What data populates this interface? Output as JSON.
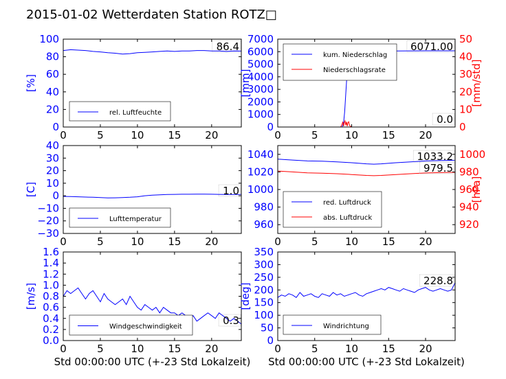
{
  "title": "2015-01-02 Wetterdaten Station ROTZ□",
  "colors": {
    "primary": "#0000ff",
    "secondary": "#ff0000"
  },
  "chart_data": [
    {
      "id": "humidity",
      "type": "line",
      "xlim": [
        0,
        24
      ],
      "ylim": [
        0,
        100
      ],
      "xticks": [
        "0",
        "5",
        "10",
        "15",
        "20"
      ],
      "yticks": [
        "0",
        "20",
        "40",
        "60",
        "80",
        "100"
      ],
      "ylabel": "[%]",
      "xlabel": "",
      "legend_placement": "lower-left",
      "last_value": "86.4",
      "series": [
        {
          "name": "rel. Luftfeuchte",
          "color": "#0000ff",
          "axis": "left",
          "x": [
            0,
            1,
            2,
            3,
            4,
            5,
            6,
            7,
            8,
            9,
            10,
            11,
            12,
            13,
            14,
            15,
            16,
            17,
            18,
            19,
            20,
            21,
            22,
            23,
            24
          ],
          "y": [
            87,
            88,
            87.5,
            87,
            86,
            85.5,
            84.5,
            84,
            83,
            83.5,
            84.5,
            85,
            85.5,
            86,
            86.5,
            86,
            86.5,
            86.5,
            87,
            87,
            86.5,
            86.5,
            86,
            86.5,
            86.4
          ]
        }
      ]
    },
    {
      "id": "precip",
      "type": "line",
      "xlim": [
        0,
        24
      ],
      "ylim": [
        0,
        7000
      ],
      "ylim_right": [
        0,
        50
      ],
      "xticks": [
        "0",
        "5",
        "10",
        "15",
        "20"
      ],
      "yticks": [
        "0",
        "1000",
        "2000",
        "3000",
        "4000",
        "5000",
        "6000",
        "7000"
      ],
      "yticks_right": [
        "0",
        "10",
        "20",
        "30",
        "40",
        "50"
      ],
      "ylabel": "[mm]",
      "ylabel_right": "[mm/std]",
      "xlabel": "",
      "legend_placement": "upper-left",
      "last_value": "6071.00",
      "last_value_right": "0.0",
      "series": [
        {
          "name": "kum. Niederschlag",
          "color": "#0000ff",
          "axis": "left",
          "x": [
            0,
            8.7,
            8.9,
            9.05,
            9.2,
            9.35,
            9.5,
            9.65,
            9.8,
            10,
            11,
            12,
            16,
            20,
            24
          ],
          "y": [
            0,
            0,
            300,
            1200,
            2600,
            4000,
            5000,
            5600,
            5850,
            5950,
            6010,
            6040,
            6060,
            6070,
            6071
          ]
        },
        {
          "name": "Niederschlagsrate",
          "color": "#ff0000",
          "axis": "right",
          "x": [
            0,
            8.5,
            8.7,
            8.8,
            8.9,
            9.0,
            9.1,
            9.2,
            9.3,
            9.4,
            9.5,
            9.6,
            9.7,
            9.8,
            10,
            24
          ],
          "y": [
            0,
            0,
            1.5,
            3,
            0.5,
            2.5,
            3.5,
            1,
            3,
            0.5,
            2.5,
            3,
            1,
            0.5,
            0,
            0
          ]
        }
      ]
    },
    {
      "id": "temperature",
      "type": "line",
      "xlim": [
        0,
        24
      ],
      "ylim": [
        -30,
        40
      ],
      "xticks": [
        "0",
        "5",
        "10",
        "15",
        "20"
      ],
      "yticks": [
        "−30",
        "−20",
        "−10",
        "0",
        "10",
        "20",
        "30",
        "40"
      ],
      "ylabel": "[C]",
      "xlabel": "",
      "legend_placement": "lower-left",
      "last_value": "1.0",
      "series": [
        {
          "name": "Lufttemperatur",
          "color": "#0000ff",
          "axis": "left",
          "x": [
            0,
            1,
            2,
            3,
            4,
            5,
            6,
            7,
            8,
            9,
            10,
            11,
            12,
            13,
            14,
            15,
            16,
            17,
            18,
            19,
            20,
            21,
            22,
            23,
            24
          ],
          "y": [
            -0.5,
            -0.6,
            -0.8,
            -1,
            -1.2,
            -1.4,
            -1.7,
            -1.6,
            -1.4,
            -1.2,
            -0.8,
            0,
            0.5,
            0.8,
            1,
            1.1,
            1.2,
            1.2,
            1.3,
            1.3,
            1.2,
            1.1,
            1.0,
            1.0,
            1.0
          ]
        }
      ]
    },
    {
      "id": "pressure",
      "type": "line",
      "xlim": [
        0,
        24
      ],
      "ylim": [
        950,
        1050
      ],
      "ylim_right": [
        910,
        1010
      ],
      "xticks": [
        "0",
        "5",
        "10",
        "15",
        "20"
      ],
      "yticks": [
        "960",
        "980",
        "1000",
        "1020",
        "1040"
      ],
      "yticks_right": [
        "920",
        "940",
        "960",
        "980",
        "1000"
      ],
      "ylabel": "",
      "ylabel_right": "[hPa]",
      "xlabel": "",
      "legend_placement": "lower-left",
      "last_value": "1033.2",
      "last_value_right": "979.5",
      "series": [
        {
          "name": "red. Luftdruck",
          "color": "#0000ff",
          "axis": "left",
          "x": [
            0,
            2,
            4,
            6,
            8,
            10,
            12,
            13,
            14,
            16,
            18,
            20,
            22,
            24
          ],
          "y": [
            1034.5,
            1033.5,
            1032.5,
            1032.2,
            1031.5,
            1030.5,
            1029.2,
            1028.8,
            1029.2,
            1030.5,
            1031.5,
            1032.5,
            1033,
            1033.2
          ]
        },
        {
          "name": "abs. Luftdruck",
          "color": "#ff0000",
          "axis": "right",
          "x": [
            0,
            2,
            4,
            6,
            8,
            10,
            12,
            13,
            14,
            16,
            18,
            20,
            22,
            24
          ],
          "y": [
            981,
            980,
            979,
            978.6,
            978,
            977,
            976,
            975.7,
            976,
            977,
            978,
            978.8,
            979.2,
            979.5
          ]
        }
      ]
    },
    {
      "id": "windspeed",
      "type": "line",
      "xlim": [
        0,
        24
      ],
      "ylim": [
        0,
        1.6
      ],
      "xticks": [
        "0",
        "5",
        "10",
        "15",
        "20"
      ],
      "yticks": [
        "0.0",
        "0.2",
        "0.4",
        "0.6",
        "0.8",
        "1.0",
        "1.2",
        "1.4",
        "1.6"
      ],
      "ylabel": "[m/s]",
      "xlabel": "Std 00:00:00 UTC (+-23 Std Lokalzeit)",
      "legend_placement": "lower-left",
      "last_value": "0.3",
      "series": [
        {
          "name": "Windgeschwindigkeit",
          "color": "#0000ff",
          "axis": "left",
          "x": [
            0,
            0.5,
            1,
            1.5,
            2,
            2.5,
            3,
            3.5,
            4,
            4.5,
            5,
            5.5,
            6,
            6.5,
            7,
            7.5,
            8,
            8.5,
            9,
            9.5,
            10,
            10.5,
            11,
            11.5,
            12,
            12.5,
            13,
            13.5,
            14,
            14.5,
            15,
            15.5,
            16,
            16.5,
            17,
            17.5,
            18,
            18.5,
            19,
            19.5,
            20,
            20.5,
            21,
            21.5,
            22,
            22.5,
            23,
            23.5,
            24
          ],
          "y": [
            0.8,
            0.9,
            0.85,
            0.9,
            0.95,
            0.85,
            0.75,
            0.85,
            0.9,
            0.8,
            0.7,
            0.85,
            0.75,
            0.7,
            0.65,
            0.7,
            0.75,
            0.65,
            0.8,
            0.7,
            0.6,
            0.55,
            0.65,
            0.6,
            0.55,
            0.6,
            0.5,
            0.6,
            0.55,
            0.5,
            0.5,
            0.45,
            0.5,
            0.45,
            0.4,
            0.45,
            0.35,
            0.4,
            0.45,
            0.5,
            0.45,
            0.4,
            0.5,
            0.45,
            0.4,
            0.35,
            0.4,
            0.35,
            0.3
          ]
        }
      ]
    },
    {
      "id": "winddir",
      "type": "line",
      "xlim": [
        0,
        24
      ],
      "ylim": [
        0,
        350
      ],
      "xticks": [
        "0",
        "5",
        "10",
        "15",
        "20"
      ],
      "yticks": [
        "0",
        "50",
        "100",
        "150",
        "200",
        "250",
        "300",
        "350"
      ],
      "ylabel": "[deg]",
      "xlabel": "Std 00:00:00 UTC (+-23 Std Lokalzeit)",
      "legend_placement": "lower-left",
      "last_value": "228.8",
      "series": [
        {
          "name": "Windrichtung",
          "color": "#0000ff",
          "axis": "left",
          "x": [
            0,
            0.5,
            1,
            1.5,
            2,
            2.5,
            3,
            3.5,
            4,
            4.5,
            5,
            5.5,
            6,
            6.5,
            7,
            7.5,
            8,
            8.5,
            9,
            9.5,
            10,
            10.5,
            11,
            11.5,
            12,
            12.5,
            13,
            13.5,
            14,
            14.5,
            15,
            15.5,
            16,
            16.5,
            17,
            17.5,
            18,
            18.5,
            19,
            19.5,
            20,
            20.5,
            21,
            21.5,
            22,
            22.5,
            23,
            23.5,
            24
          ],
          "y": [
            170,
            180,
            175,
            185,
            180,
            170,
            190,
            175,
            180,
            185,
            175,
            170,
            185,
            180,
            175,
            190,
            180,
            185,
            175,
            180,
            185,
            190,
            180,
            175,
            185,
            190,
            195,
            200,
            205,
            200,
            210,
            205,
            200,
            195,
            205,
            200,
            195,
            190,
            200,
            205,
            210,
            200,
            195,
            200,
            205,
            200,
            195,
            200,
            228.8
          ]
        }
      ]
    }
  ]
}
